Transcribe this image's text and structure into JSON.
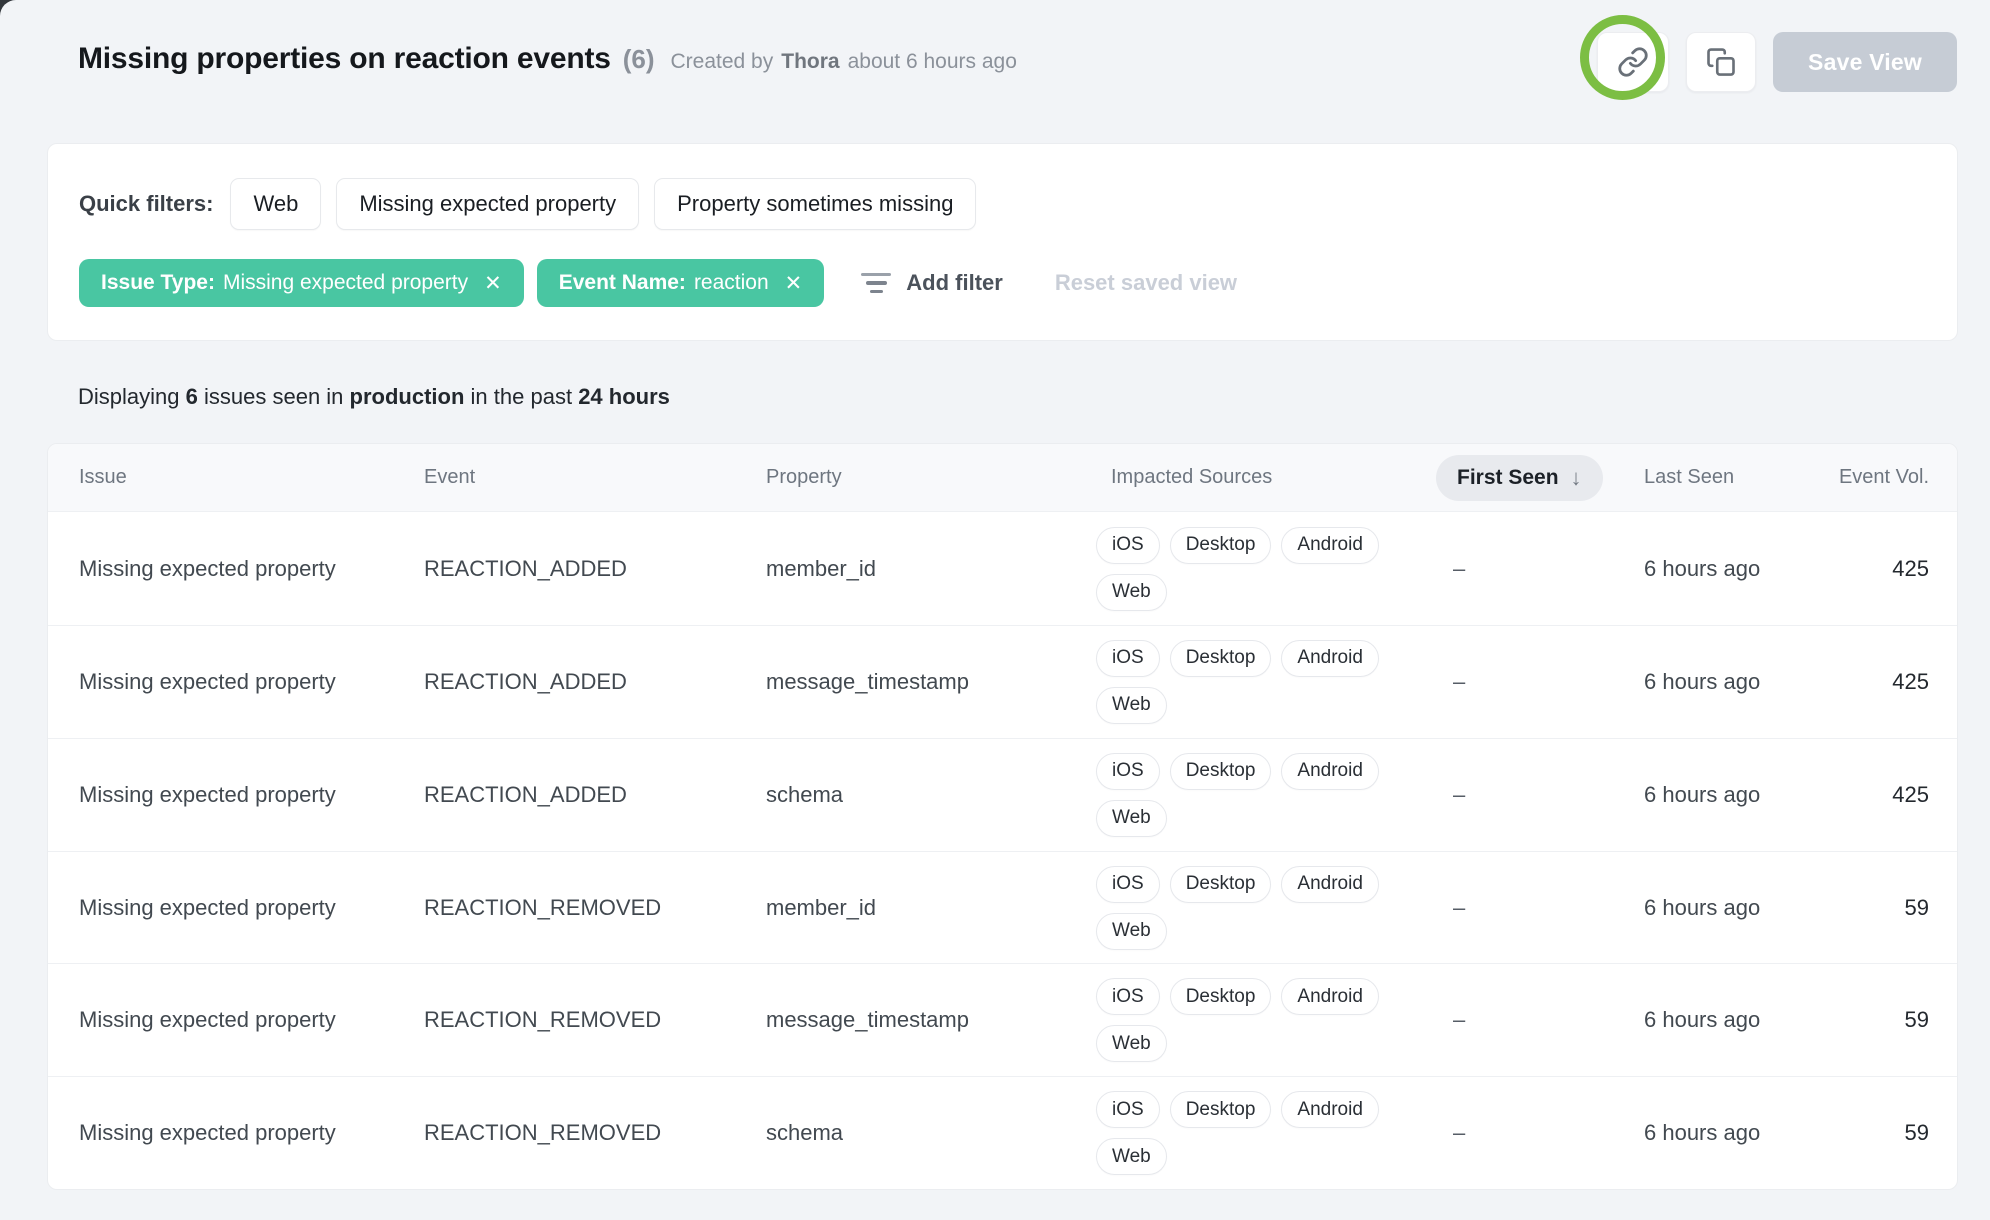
{
  "page": {
    "title": "Missing properties on reaction events",
    "count": "(6)",
    "created_by_prefix": "Created by",
    "created_by_name": "Thora",
    "created_time": "about 6 hours ago"
  },
  "toolbar": {
    "save_view_label": "Save View",
    "icons": [
      "link-icon",
      "copy-icon"
    ],
    "annotation": "green-circle-highlight-on-link-button"
  },
  "filters": {
    "quick_filters_label": "Quick filters:",
    "quick_filters": [
      "Web",
      "Missing expected property",
      "Property sometimes missing"
    ],
    "chips": [
      {
        "label": "Issue Type:",
        "value": "Missing expected property",
        "close": "✕"
      },
      {
        "label": "Event Name:",
        "value": "reaction",
        "close": "✕"
      }
    ],
    "add_filter_label": "Add filter",
    "reset_label": "Reset saved view"
  },
  "summary": {
    "prefix": "Displaying",
    "count": "6",
    "mid1": "issues seen in",
    "environment": "production",
    "mid2": "in the past",
    "range": "24 hours"
  },
  "table": {
    "columns": [
      "Issue",
      "Event",
      "Property",
      "Impacted Sources",
      "First Seen",
      "Last Seen",
      "Event Vol."
    ],
    "sort": {
      "column": "First Seen",
      "direction": "desc",
      "arrow": "↓"
    },
    "rows": [
      {
        "issue": "Missing expected property",
        "event": "REACTION_ADDED",
        "property": "member_id",
        "sources": [
          "iOS",
          "Desktop",
          "Android",
          "Web"
        ],
        "first_seen": "–",
        "last_seen": "6 hours ago",
        "event_vol": "425"
      },
      {
        "issue": "Missing expected property",
        "event": "REACTION_ADDED",
        "property": "message_timestamp",
        "sources": [
          "iOS",
          "Desktop",
          "Android",
          "Web"
        ],
        "first_seen": "–",
        "last_seen": "6 hours ago",
        "event_vol": "425"
      },
      {
        "issue": "Missing expected property",
        "event": "REACTION_ADDED",
        "property": "schema",
        "sources": [
          "iOS",
          "Desktop",
          "Android",
          "Web"
        ],
        "first_seen": "–",
        "last_seen": "6 hours ago",
        "event_vol": "425"
      },
      {
        "issue": "Missing expected property",
        "event": "REACTION_REMOVED",
        "property": "member_id",
        "sources": [
          "iOS",
          "Desktop",
          "Android",
          "Web"
        ],
        "first_seen": "–",
        "last_seen": "6 hours ago",
        "event_vol": "59"
      },
      {
        "issue": "Missing expected property",
        "event": "REACTION_REMOVED",
        "property": "message_timestamp",
        "sources": [
          "iOS",
          "Desktop",
          "Android",
          "Web"
        ],
        "first_seen": "–",
        "last_seen": "6 hours ago",
        "event_vol": "59"
      },
      {
        "issue": "Missing expected property",
        "event": "REACTION_REMOVED",
        "property": "schema",
        "sources": [
          "iOS",
          "Desktop",
          "Android",
          "Web"
        ],
        "first_seen": "–",
        "last_seen": "6 hours ago",
        "event_vol": "59"
      }
    ]
  },
  "colors": {
    "accent_green": "#49c6a2",
    "annotation_green": "#7cbe43",
    "page_background": "#f2f4f7",
    "disabled_button": "#c6ccd5",
    "sort_pill_background": "#e8eaee"
  }
}
